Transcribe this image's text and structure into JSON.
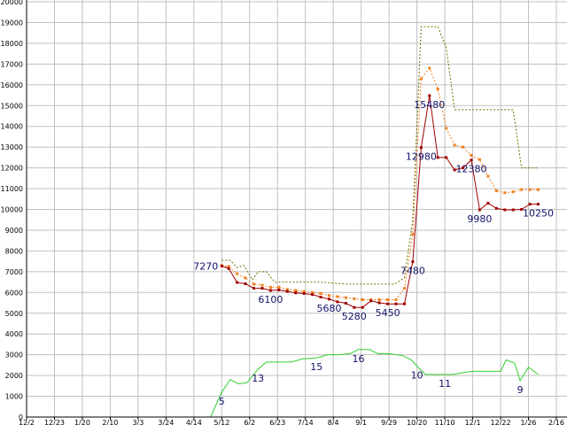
{
  "chart_data": {
    "type": "line",
    "grid": true,
    "ylim": [
      0,
      20000
    ],
    "y_ticks": [
      0,
      1000,
      2000,
      3000,
      4000,
      5000,
      6000,
      7000,
      8000,
      9000,
      10000,
      11000,
      12000,
      13000,
      14000,
      15000,
      16000,
      17000,
      18000,
      19000,
      20000
    ],
    "x_ticks": [
      "12/2",
      "12/23",
      "1/20",
      "2/10",
      "3/3",
      "3/24",
      "4/14",
      "5/12",
      "6/2",
      "6/23",
      "7/14",
      "8/4",
      "9/1",
      "9/29",
      "10/20",
      "11/10",
      "12/1",
      "12/22",
      "1/26",
      "2/16"
    ],
    "colors": {
      "price": "#a00000",
      "average": "#f08020",
      "upper": "#707000",
      "volume": "#30d030",
      "grid": "#c0c0c0",
      "label": "#10106a"
    },
    "series": [
      {
        "key": "price",
        "style": "solid-markers",
        "points": [
          [
            7.0,
            7270
          ],
          [
            7.25,
            7150
          ],
          [
            7.55,
            6480
          ],
          [
            7.85,
            6420
          ],
          [
            8.15,
            6200
          ],
          [
            8.45,
            6200
          ],
          [
            8.75,
            6100
          ],
          [
            9.05,
            6120
          ],
          [
            9.35,
            6050
          ],
          [
            9.65,
            5980
          ],
          [
            9.95,
            5950
          ],
          [
            10.25,
            5900
          ],
          [
            10.55,
            5780
          ],
          [
            10.85,
            5680
          ],
          [
            11.15,
            5550
          ],
          [
            11.45,
            5480
          ],
          [
            11.75,
            5280
          ],
          [
            12.05,
            5280
          ],
          [
            12.35,
            5600
          ],
          [
            12.65,
            5500
          ],
          [
            12.95,
            5450
          ],
          [
            13.25,
            5450
          ],
          [
            13.55,
            5450
          ],
          [
            13.85,
            7480
          ],
          [
            14.15,
            12980
          ],
          [
            14.45,
            15480
          ],
          [
            14.75,
            12500
          ],
          [
            15.05,
            12500
          ],
          [
            15.35,
            11900
          ],
          [
            15.65,
            12000
          ],
          [
            15.95,
            12380
          ],
          [
            16.25,
            9980
          ],
          [
            16.55,
            10300
          ],
          [
            16.85,
            10050
          ],
          [
            17.15,
            9980
          ],
          [
            17.45,
            9980
          ],
          [
            17.75,
            10000
          ],
          [
            18.05,
            10250
          ],
          [
            18.35,
            10250
          ]
        ]
      },
      {
        "key": "average",
        "style": "dotted-markers",
        "points": [
          [
            7.0,
            7300
          ],
          [
            7.25,
            7250
          ],
          [
            7.55,
            6900
          ],
          [
            7.85,
            6700
          ],
          [
            8.15,
            6400
          ],
          [
            8.45,
            6350
          ],
          [
            8.75,
            6250
          ],
          [
            9.05,
            6250
          ],
          [
            9.35,
            6150
          ],
          [
            9.65,
            6100
          ],
          [
            9.95,
            6050
          ],
          [
            10.25,
            6000
          ],
          [
            10.55,
            5950
          ],
          [
            10.85,
            5850
          ],
          [
            11.15,
            5800
          ],
          [
            11.45,
            5750
          ],
          [
            11.75,
            5700
          ],
          [
            12.05,
            5650
          ],
          [
            12.35,
            5650
          ],
          [
            12.65,
            5650
          ],
          [
            12.95,
            5650
          ],
          [
            13.25,
            5650
          ],
          [
            13.55,
            6200
          ],
          [
            13.85,
            8800
          ],
          [
            14.15,
            16300
          ],
          [
            14.45,
            16800
          ],
          [
            14.75,
            15800
          ],
          [
            15.05,
            13900
          ],
          [
            15.35,
            13100
          ],
          [
            15.65,
            13000
          ],
          [
            15.95,
            12600
          ],
          [
            16.25,
            12400
          ],
          [
            16.55,
            11600
          ],
          [
            16.85,
            10900
          ],
          [
            17.15,
            10800
          ],
          [
            17.45,
            10850
          ],
          [
            17.75,
            10950
          ],
          [
            18.05,
            10950
          ],
          [
            18.35,
            10950
          ]
        ]
      },
      {
        "key": "upper",
        "style": "dotted",
        "points": [
          [
            7.0,
            7550
          ],
          [
            7.3,
            7550
          ],
          [
            7.55,
            7200
          ],
          [
            7.8,
            7300
          ],
          [
            8.1,
            6600
          ],
          [
            8.3,
            7000
          ],
          [
            8.6,
            7000
          ],
          [
            8.9,
            6500
          ],
          [
            9.5,
            6500
          ],
          [
            10.5,
            6500
          ],
          [
            11.0,
            6450
          ],
          [
            11.6,
            6400
          ],
          [
            12.2,
            6400
          ],
          [
            12.6,
            6400
          ],
          [
            13.2,
            6400
          ],
          [
            13.55,
            6700
          ],
          [
            13.85,
            9500
          ],
          [
            14.15,
            18800
          ],
          [
            14.75,
            18800
          ],
          [
            15.05,
            17800
          ],
          [
            15.35,
            14800
          ],
          [
            16.25,
            14800
          ],
          [
            16.55,
            14800
          ],
          [
            17.0,
            14800
          ],
          [
            17.45,
            14800
          ],
          [
            17.75,
            12000
          ],
          [
            18.35,
            12000
          ]
        ]
      },
      {
        "key": "volume",
        "style": "solid",
        "points": [
          [
            0.0,
            0
          ],
          [
            1.0,
            0
          ],
          [
            2.0,
            0
          ],
          [
            3.0,
            0
          ],
          [
            4.0,
            0
          ],
          [
            5.0,
            0
          ],
          [
            6.0,
            0
          ],
          [
            6.6,
            0
          ],
          [
            7.0,
            1200
          ],
          [
            7.3,
            1800
          ],
          [
            7.6,
            1600
          ],
          [
            7.9,
            1650
          ],
          [
            8.3,
            2300
          ],
          [
            8.6,
            2650
          ],
          [
            9.0,
            2650
          ],
          [
            9.5,
            2650
          ],
          [
            9.9,
            2800
          ],
          [
            10.4,
            2850
          ],
          [
            10.8,
            3000
          ],
          [
            11.2,
            3000
          ],
          [
            11.6,
            3050
          ],
          [
            11.9,
            3250
          ],
          [
            12.1,
            3250
          ],
          [
            12.3,
            3250
          ],
          [
            12.6,
            3050
          ],
          [
            13.0,
            3050
          ],
          [
            13.5,
            2950
          ],
          [
            13.8,
            2750
          ],
          [
            14.0,
            2450
          ],
          [
            14.3,
            2050
          ],
          [
            14.8,
            2050
          ],
          [
            15.3,
            2050
          ],
          [
            15.7,
            2150
          ],
          [
            16.0,
            2200
          ],
          [
            16.5,
            2200
          ],
          [
            17.0,
            2200
          ],
          [
            17.2,
            2750
          ],
          [
            17.5,
            2600
          ],
          [
            17.7,
            1750
          ],
          [
            18.0,
            2400
          ],
          [
            18.35,
            2050
          ]
        ]
      }
    ],
    "labels": [
      {
        "text": "7270",
        "x": 7.0,
        "y": 7270,
        "pos": "left"
      },
      {
        "text": "6100",
        "x": 8.75,
        "y": 6100,
        "pos": "below"
      },
      {
        "text": "5680",
        "x": 10.85,
        "y": 5680,
        "pos": "below"
      },
      {
        "text": "5280",
        "x": 11.75,
        "y": 5280,
        "pos": "below"
      },
      {
        "text": "5450",
        "x": 12.95,
        "y": 5450,
        "pos": "below"
      },
      {
        "text": "7480",
        "x": 13.85,
        "y": 7480,
        "pos": "below"
      },
      {
        "text": "12980",
        "x": 14.15,
        "y": 12980,
        "pos": "below"
      },
      {
        "text": "15480",
        "x": 14.45,
        "y": 15480,
        "pos": "below"
      },
      {
        "text": "12380",
        "x": 15.95,
        "y": 12380,
        "pos": "below"
      },
      {
        "text": "9980",
        "x": 16.25,
        "y": 9980,
        "pos": "below"
      },
      {
        "text": "10250",
        "x": 18.35,
        "y": 10250,
        "pos": "below"
      },
      {
        "text": "5",
        "x": 7.0,
        "y": 1200,
        "pos": "below"
      },
      {
        "text": "13",
        "x": 8.3,
        "y": 2300,
        "pos": "below"
      },
      {
        "text": "15",
        "x": 10.4,
        "y": 2850,
        "pos": "below"
      },
      {
        "text": "16",
        "x": 11.9,
        "y": 3250,
        "pos": "below"
      },
      {
        "text": "10",
        "x": 14.0,
        "y": 2450,
        "pos": "below"
      },
      {
        "text": "11",
        "x": 15.0,
        "y": 2050,
        "pos": "below"
      },
      {
        "text": "9",
        "x": 17.7,
        "y": 1750,
        "pos": "below"
      }
    ]
  }
}
